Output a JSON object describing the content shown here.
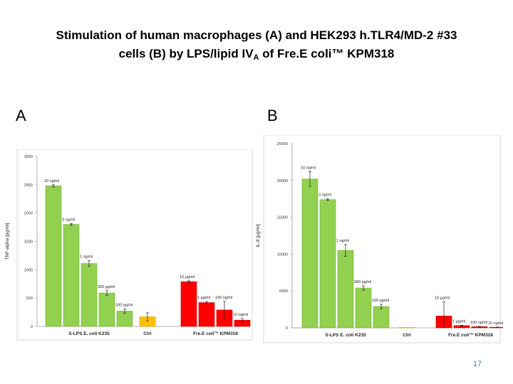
{
  "slide": {
    "title_line1": "Stimulation of human macrophages (A) and HEK293 h.TLR4/MD-2 #33",
    "title_line2_pre": "cells (B) by LPS/lipid IV",
    "title_line2_sub": "A",
    "title_line2_post": " of Fre.E coli™ KPM318",
    "page_number": "17"
  },
  "panels": {
    "a_label": "A",
    "b_label": "B"
  },
  "colors": {
    "green": "#92d050",
    "green_border": "#6fae2b",
    "red": "#ff0000",
    "red_border": "#c00000",
    "yellow": "#ffc000",
    "yellow_border": "#d9a300",
    "frame": "#d0d0d0"
  },
  "chart_data": [
    {
      "type": "bar",
      "panel": "A",
      "ylabel": "TNF-alpha [pg/ml]",
      "ylim": [
        0,
        3000
      ],
      "yticks": [
        0,
        500,
        1000,
        1500,
        2000,
        2500,
        3000
      ],
      "groups": [
        "S-LPS E. coli K235",
        "Ctrl",
        "Fre.E coli™ KPM318"
      ],
      "bars": [
        {
          "group": 0,
          "value": 2480,
          "error": 20,
          "label": "10 ng/ml",
          "color": "green"
        },
        {
          "group": 0,
          "value": 1800,
          "error": 15,
          "label": "3 ng/ml",
          "color": "green"
        },
        {
          "group": 0,
          "value": 1110,
          "error": 50,
          "label": "1 ng/ml",
          "color": "green"
        },
        {
          "group": 0,
          "value": 590,
          "error": 40,
          "label": "300 pg/ml",
          "color": "green"
        },
        {
          "group": 0,
          "value": 270,
          "error": 40,
          "label": "100 pg/ml",
          "color": "green"
        },
        {
          "group": 1,
          "value": 170,
          "error": 70,
          "label": "",
          "color": "yellow"
        },
        {
          "group": 2,
          "value": 790,
          "error": 15,
          "label": "10 µg/ml",
          "color": "red"
        },
        {
          "group": 2,
          "value": 420,
          "error": 20,
          "label": "1 µg/ml",
          "color": "red"
        },
        {
          "group": 2,
          "value": 290,
          "error": 150,
          "label": "100 ng/ml",
          "color": "red"
        },
        {
          "group": 2,
          "value": 110,
          "error": 30,
          "label": "10 ng/ml",
          "color": "red"
        }
      ]
    },
    {
      "type": "bar",
      "panel": "B",
      "ylabel": "IL-8 [pg/ml]",
      "ylim": [
        0,
        25000
      ],
      "yticks": [
        0,
        5000,
        10000,
        15000,
        20000,
        25000
      ],
      "groups": [
        "S-LPS E. coli K235",
        "Ctrl",
        "Fre.E coli™ KPM318"
      ],
      "bars": [
        {
          "group": 0,
          "value": 20200,
          "error": 1000,
          "label": "10 ng/ml",
          "color": "green"
        },
        {
          "group": 0,
          "value": 17400,
          "error": 100,
          "label": "3 ng/ml",
          "color": "green"
        },
        {
          "group": 0,
          "value": 10500,
          "error": 800,
          "label": "1 ng/ml",
          "color": "green"
        },
        {
          "group": 0,
          "value": 5400,
          "error": 300,
          "label": "300 pg/ml",
          "color": "green"
        },
        {
          "group": 0,
          "value": 2900,
          "error": 300,
          "label": "100 pg/ml",
          "color": "green"
        },
        {
          "group": 1,
          "value": 50,
          "error": 0,
          "label": "",
          "color": "yellow"
        },
        {
          "group": 2,
          "value": 1600,
          "error": 1900,
          "label": "10 µg/ml",
          "color": "red"
        },
        {
          "group": 2,
          "value": 300,
          "error": 50,
          "label": "1 µg/ml",
          "color": "red"
        },
        {
          "group": 2,
          "value": 150,
          "error": 50,
          "label": "100 ng/ml",
          "color": "red"
        },
        {
          "group": 2,
          "value": 80,
          "error": 30,
          "label": "10 ng/ml",
          "color": "red"
        }
      ]
    }
  ]
}
